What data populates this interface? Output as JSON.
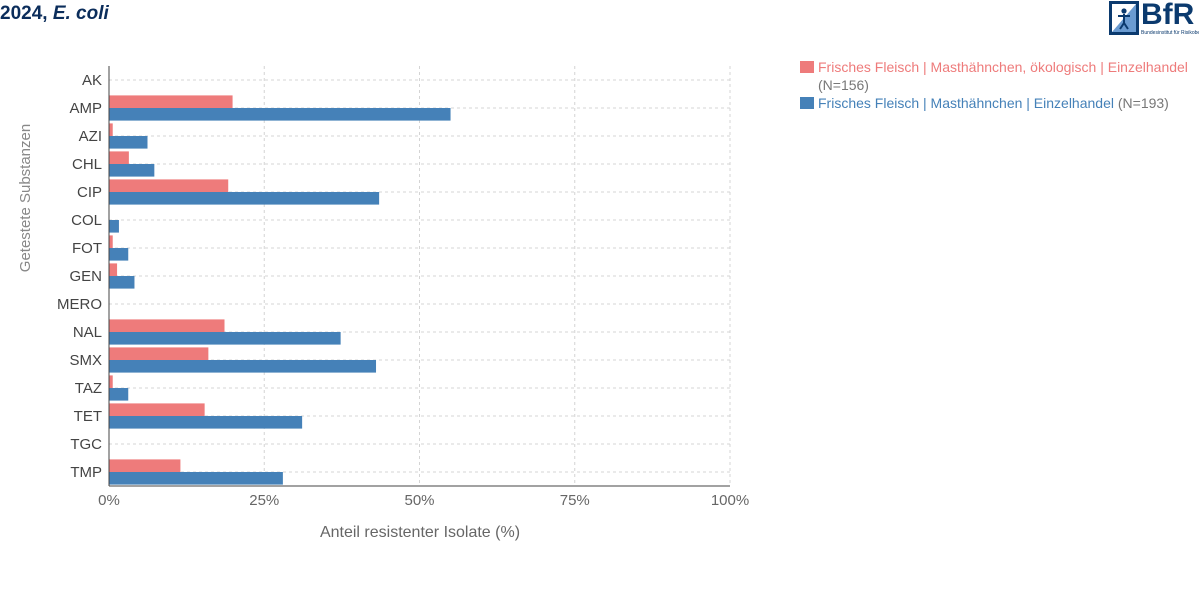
{
  "header": {
    "title_year": "2024,",
    "title_species": "E. coli"
  },
  "logo": {
    "text": "BfR",
    "subtitle": "Bundesinstitut für Risikobewertung"
  },
  "colors": {
    "series1": "#ee7b7b",
    "series2": "#4581b8",
    "grid": "#d4d4d4",
    "axis": "#666666"
  },
  "chart_data": {
    "type": "bar",
    "orientation": "horizontal",
    "xlabel": "Anteil resistenter Isolate (%)",
    "ylabel": "Getestete Substanzen",
    "xlim": [
      0,
      100
    ],
    "x_ticks": [
      "0%",
      "25%",
      "50%",
      "75%",
      "100%"
    ],
    "x_tick_values": [
      0,
      25,
      50,
      75,
      100
    ],
    "grid": true,
    "legend_position": "top-right",
    "categories": [
      "AK",
      "AMP",
      "AZI",
      "CHL",
      "CIP",
      "COL",
      "FOT",
      "GEN",
      "MERO",
      "NAL",
      "SMX",
      "TAZ",
      "TET",
      "TGC",
      "TMP"
    ],
    "series": [
      {
        "name": "Frisches Fleisch | Masthähnchen, ökologisch | Einzelhandel",
        "n_label": "(N=156)",
        "values": [
          0,
          19.9,
          0.6,
          3.2,
          19.2,
          0,
          0.6,
          1.3,
          0,
          18.6,
          16.0,
          0.6,
          15.4,
          0,
          11.5
        ]
      },
      {
        "name": "Frisches Fleisch | Masthähnchen | Einzelhandel",
        "n_label": "(N=193)",
        "values": [
          0,
          55.0,
          6.2,
          7.3,
          43.5,
          1.6,
          3.1,
          4.1,
          0,
          37.3,
          43.0,
          3.1,
          31.1,
          0,
          28.0
        ]
      }
    ]
  }
}
